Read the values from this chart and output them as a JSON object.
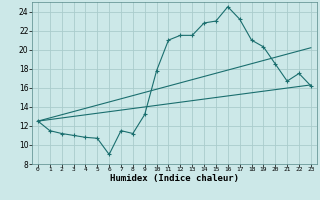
{
  "title": "",
  "xlabel": "Humidex (Indice chaleur)",
  "ylabel": "",
  "background_color": "#cce8e8",
  "grid_color": "#aacccc",
  "line_color": "#1a6e6e",
  "xlim": [
    -0.5,
    23.5
  ],
  "ylim": [
    8,
    25
  ],
  "yticks": [
    8,
    10,
    12,
    14,
    16,
    18,
    20,
    22,
    24
  ],
  "xticks": [
    0,
    1,
    2,
    3,
    4,
    5,
    6,
    7,
    8,
    9,
    10,
    11,
    12,
    13,
    14,
    15,
    16,
    17,
    18,
    19,
    20,
    21,
    22,
    23
  ],
  "line1_x": [
    0,
    1,
    2,
    3,
    4,
    5,
    6,
    7,
    8,
    9,
    10,
    11,
    12,
    13,
    14,
    15,
    16,
    17,
    18,
    19,
    20,
    21,
    22,
    23
  ],
  "line1_y": [
    12.5,
    11.5,
    11.2,
    11.0,
    10.8,
    10.7,
    9.0,
    11.5,
    11.2,
    13.2,
    17.8,
    21.0,
    21.5,
    21.5,
    22.8,
    23.0,
    24.5,
    23.2,
    21.0,
    20.3,
    18.5,
    16.7,
    17.5,
    16.2
  ],
  "line2_x": [
    0,
    23
  ],
  "line2_y": [
    12.5,
    16.3
  ],
  "line3_x": [
    0,
    23
  ],
  "line3_y": [
    12.5,
    20.2
  ]
}
